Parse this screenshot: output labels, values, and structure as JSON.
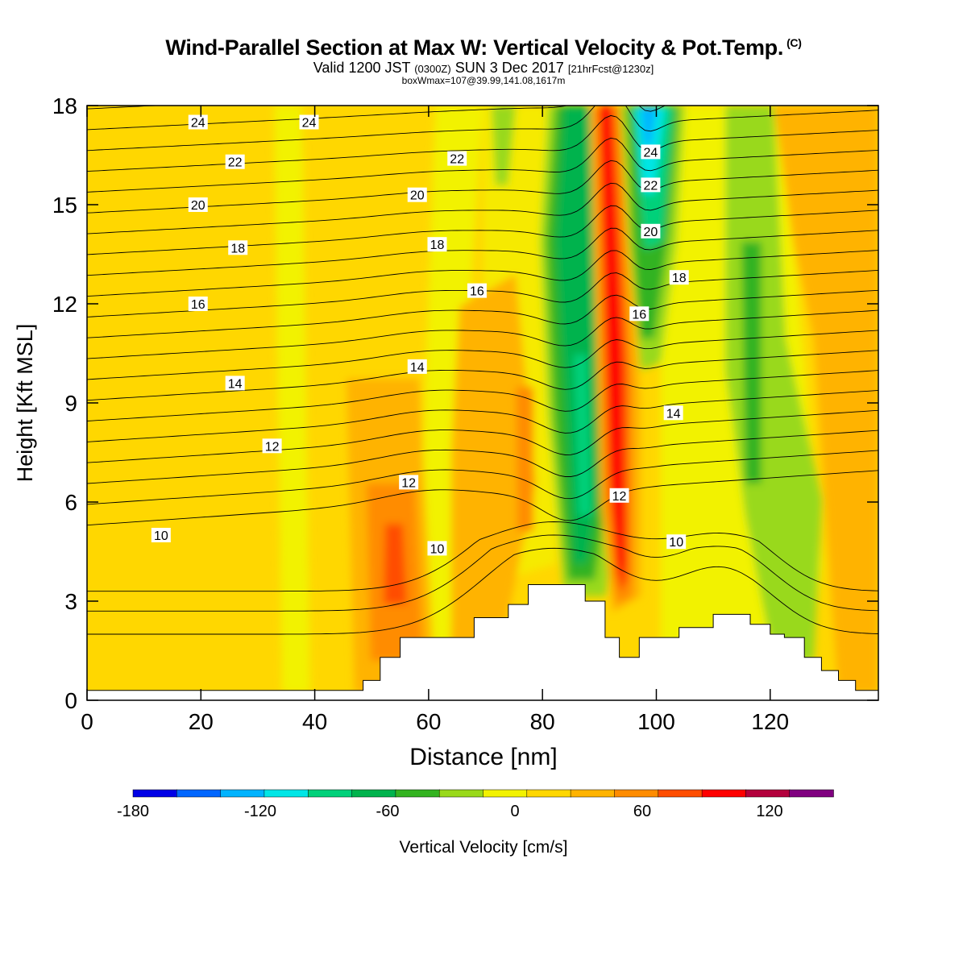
{
  "chart_data": {
    "type": "contour",
    "title": "Wind-Parallel Section at Max W: Vertical Velocity & Pot.Temp.",
    "title_mark": "(C)",
    "subtitle": {
      "valid": "Valid 1200 JST",
      "utc": "(0300Z)",
      "date": "SUN 3 Dec 2017",
      "forecast": "[21hrFcst@1230z]"
    },
    "box_info": "boxWmax=107@39.99,141.08,1617m",
    "xlabel": "Distance [nm]",
    "ylabel": "Height [Kft MSL]",
    "xlim": [
      0,
      139
    ],
    "ylim": [
      0,
      18
    ],
    "x_ticks": [
      "0",
      "20",
      "40",
      "60",
      "80",
      "100",
      "120"
    ],
    "y_ticks": [
      "0",
      "3",
      "6",
      "9",
      "12",
      "15",
      "18"
    ],
    "colorbar": {
      "label": "Vertical Velocity [cm/s]",
      "range": [
        -180,
        150
      ],
      "step": 20,
      "tick_labels": [
        "-180",
        "-120",
        "-60",
        "0",
        "60",
        "120"
      ],
      "colors": [
        "#0000e6",
        "#0066ff",
        "#00b3ff",
        "#00e6e6",
        "#00d17a",
        "#00b34d",
        "#33b320",
        "#99d91a",
        "#f2f200",
        "#ffd700",
        "#ffb300",
        "#ff8c00",
        "#ff4d00",
        "#ff0000",
        "#b3003c",
        "#800080"
      ]
    },
    "contour_labels": [
      {
        "text": "24",
        "x": 19.5,
        "y": 17.5
      },
      {
        "text": "24",
        "x": 39,
        "y": 17.5
      },
      {
        "text": "24",
        "x": 99,
        "y": 16.6
      },
      {
        "text": "22",
        "x": 26,
        "y": 16.3
      },
      {
        "text": "22",
        "x": 65,
        "y": 16.4
      },
      {
        "text": "22",
        "x": 99,
        "y": 15.6
      },
      {
        "text": "20",
        "x": 19.5,
        "y": 15.0
      },
      {
        "text": "20",
        "x": 58,
        "y": 15.3
      },
      {
        "text": "20",
        "x": 99,
        "y": 14.2
      },
      {
        "text": "18",
        "x": 26.5,
        "y": 13.7
      },
      {
        "text": "18",
        "x": 61.5,
        "y": 13.8
      },
      {
        "text": "18",
        "x": 104,
        "y": 12.8
      },
      {
        "text": "16",
        "x": 19.5,
        "y": 12.0
      },
      {
        "text": "16",
        "x": 68.5,
        "y": 12.4
      },
      {
        "text": "16",
        "x": 97,
        "y": 11.7
      },
      {
        "text": "14",
        "x": 26,
        "y": 9.6
      },
      {
        "text": "14",
        "x": 58,
        "y": 10.1
      },
      {
        "text": "14",
        "x": 103,
        "y": 8.7
      },
      {
        "text": "12",
        "x": 32.5,
        "y": 7.7
      },
      {
        "text": "12",
        "x": 56.5,
        "y": 6.6
      },
      {
        "text": "12",
        "x": 93.5,
        "y": 6.2
      },
      {
        "text": "10",
        "x": 13,
        "y": 5.0
      },
      {
        "text": "10",
        "x": 61.5,
        "y": 4.6
      },
      {
        "text": "10",
        "x": 103.5,
        "y": 4.8
      }
    ]
  }
}
